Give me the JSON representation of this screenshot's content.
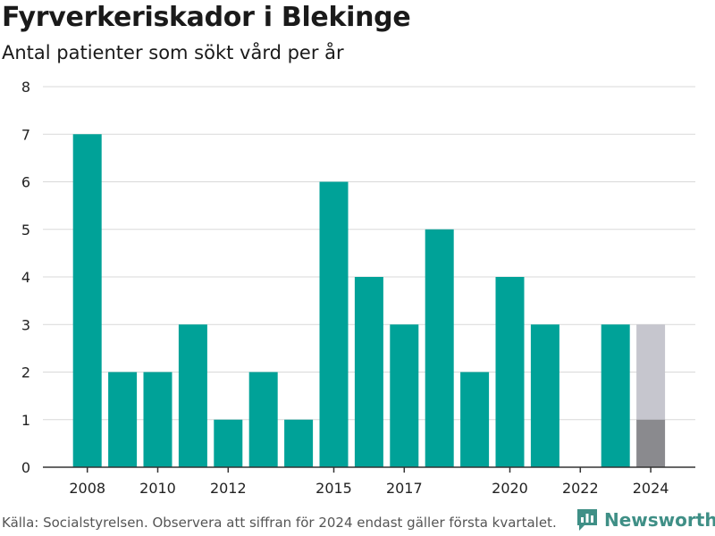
{
  "header": {
    "title": "Fyrverkeriskador i Blekinge",
    "subtitle": "Antal patienter som sökt vård per år"
  },
  "footer": {
    "source": "Källa: Socialstyrelsen. Observera att siffran för 2024 endast gäller första kvartalet.",
    "brand": "Newsworthy"
  },
  "colors": {
    "bar": "#00a298",
    "partial_bar": "#8a8a8e",
    "remaining_bar": "#c6c6ce",
    "grid": "#d9d9d9",
    "axis": "#333333",
    "brand": "#3f8f86"
  },
  "chart_data": {
    "type": "bar",
    "title": "Fyrverkeriskador i Blekinge",
    "subtitle": "Antal patienter som sökt vård per år",
    "categories": [
      2008,
      2009,
      2010,
      2011,
      2012,
      2013,
      2014,
      2015,
      2016,
      2017,
      2018,
      2019,
      2020,
      2021,
      2022,
      2023,
      2024
    ],
    "values": [
      7,
      2,
      2,
      3,
      1,
      2,
      1,
      6,
      4,
      3,
      5,
      2,
      4,
      3,
      0,
      3,
      1
    ],
    "highlight": {
      "category": 2024,
      "partial_value": 1,
      "extended_value": 3
    },
    "x_tick_labels": [
      "2008",
      "2010",
      "2012",
      "2015",
      "2017",
      "2020",
      "2022",
      "2024"
    ],
    "y_ticks": [
      0,
      1,
      2,
      3,
      4,
      5,
      6,
      7,
      8
    ],
    "ylim": [
      0,
      8
    ],
    "grid": true,
    "legend": "none"
  }
}
